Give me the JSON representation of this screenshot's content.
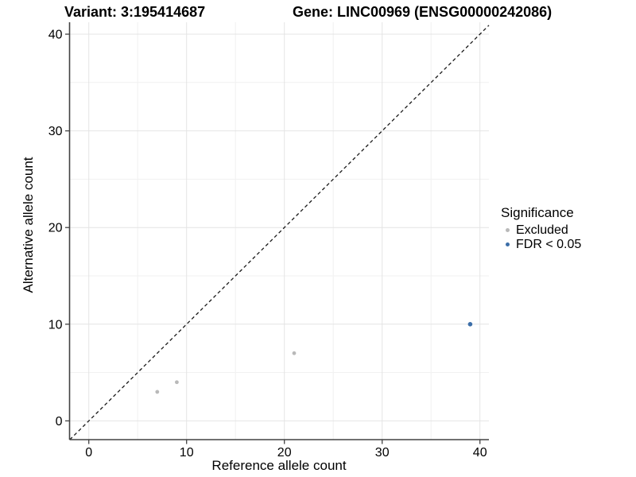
{
  "titles": {
    "variant": "Variant: 3:195414687",
    "gene": "Gene: LINC00969 (ENSG00000242086)"
  },
  "chart_data": {
    "type": "scatter",
    "xlabel": "Reference allele count",
    "ylabel": "Alternative allele count",
    "xlim": [
      -2,
      41
    ],
    "ylim": [
      -2,
      41.3
    ],
    "xticks": [
      0,
      10,
      20,
      30,
      40
    ],
    "yticks": [
      0,
      10,
      20,
      30,
      40
    ],
    "minor_xticks": [
      5,
      15,
      25,
      35
    ],
    "minor_yticks": [
      5,
      15,
      25,
      35
    ],
    "grid": "major and minor gridlines, white panel",
    "identity_line": {
      "style": "dashed",
      "equation": "y = x"
    },
    "legend": {
      "title": "Significance",
      "position": "right"
    },
    "series": [
      {
        "name": "Excluded",
        "color": "#b9b9b9",
        "points": [
          [
            7,
            3
          ],
          [
            9,
            4
          ],
          [
            21,
            7
          ]
        ]
      },
      {
        "name": "FDR < 0.05",
        "color": "#3c6ea8",
        "points": [
          [
            39,
            10
          ]
        ]
      }
    ]
  },
  "colors": {
    "background": "#ffffff",
    "grid_major": "#e4e4e4",
    "grid_minor": "#f1f1f1",
    "axis_line": "#424242",
    "identity_line": "#1a1a1a",
    "text": "#000000"
  }
}
